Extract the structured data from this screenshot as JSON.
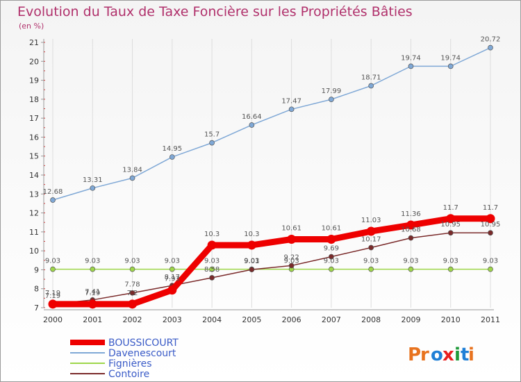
{
  "chart_data": {
    "type": "line",
    "title": "Evolution du Taux de Taxe Foncière sur les Propriétés Bâties",
    "subtitle": "(en %)",
    "x": [
      "2000",
      "2001",
      "2002",
      "2003",
      "2004",
      "2005",
      "2006",
      "2007",
      "2008",
      "2009",
      "2010",
      "2011"
    ],
    "ylim": [
      7,
      21
    ],
    "yticks": [
      7,
      8,
      9,
      10,
      11,
      12,
      13,
      14,
      15,
      16,
      17,
      18,
      19,
      20,
      21
    ],
    "grid": "vertical",
    "legend_position": "bottom-left",
    "series": [
      {
        "name": "BOUSSICOURT",
        "color": "#ee0000",
        "values": [
          7.19,
          7.19,
          7.19,
          7.93,
          10.3,
          10.3,
          10.61,
          10.61,
          11.03,
          11.36,
          11.7,
          11.7
        ],
        "labels": [
          "7.19",
          "7.19",
          "7.2",
          "7.93",
          "10.3",
          "10.3",
          "10.61",
          "10.61",
          "11.03",
          "11.36",
          "11.7",
          "11.7"
        ]
      },
      {
        "name": "Davenescourt",
        "color": "#7fa8d6",
        "values": [
          12.68,
          13.31,
          13.84,
          14.95,
          15.7,
          16.64,
          17.47,
          17.99,
          18.71,
          19.74,
          19.74,
          20.72
        ],
        "labels": [
          "12.68",
          "13.31",
          "13.84",
          "14.95",
          "15.7",
          "16.64",
          "17.47",
          "17.99",
          "18.71",
          "19.74",
          "19.74",
          "20.72"
        ]
      },
      {
        "name": "Fignières",
        "color": "#9ed64a",
        "values": [
          9.03,
          9.03,
          9.03,
          9.03,
          9.03,
          9.03,
          9.03,
          9.03,
          9.03,
          9.03,
          9.03,
          9.03
        ],
        "labels": [
          "9.03",
          "9.03",
          "9.03",
          "9.03",
          "9.03",
          "9.03",
          "9.03",
          "9.03",
          "9.03",
          "9.03",
          "9.03",
          "9.03"
        ]
      },
      {
        "name": "Contoire",
        "color": "#7a2a2a",
        "values": [
          7.19,
          7.41,
          7.78,
          8.17,
          8.58,
          9.01,
          9.22,
          9.69,
          10.17,
          10.68,
          10.95,
          10.95
        ],
        "labels": [
          "7.19",
          "7.41",
          "7.78",
          "8.17",
          "8.58",
          "9.01",
          "9.22",
          "9.69",
          "10.17",
          "10.68",
          "10.95",
          "10.95"
        ]
      }
    ]
  },
  "logo": {
    "text": "Proxiti"
  }
}
